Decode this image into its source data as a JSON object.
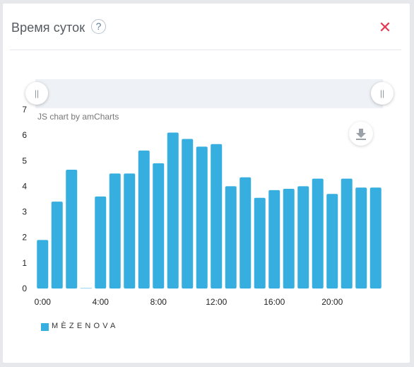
{
  "header": {
    "title": "Время суток",
    "help_label": "?",
    "close_label": "✕"
  },
  "colors": {
    "series": "#36aee0",
    "close": "#e8354f"
  },
  "credit": "JS chart by amCharts",
  "chart_data": {
    "type": "bar",
    "x": [
      0,
      1,
      2,
      3,
      4,
      5,
      6,
      7,
      8,
      9,
      10,
      11,
      12,
      13,
      14,
      15,
      16,
      17,
      18,
      19,
      20,
      21,
      22,
      23
    ],
    "xticks": [
      "0:00",
      "4:00",
      "8:00",
      "12:00",
      "16:00",
      "20:00"
    ],
    "ylim": [
      0,
      7
    ],
    "yticks": [
      "0",
      "1",
      "2",
      "3",
      "4",
      "5",
      "6",
      "7"
    ],
    "grid": false,
    "legend": "bottom-left",
    "series": [
      {
        "name": "MÈZENOVA",
        "values": [
          1.9,
          3.4,
          4.65,
          0,
          3.6,
          4.5,
          4.5,
          5.4,
          4.9,
          6.1,
          5.85,
          5.55,
          5.65,
          4.0,
          4.35,
          3.55,
          3.85,
          3.9,
          4.0,
          4.3,
          3.7,
          4.3,
          3.95,
          3.95
        ]
      }
    ]
  }
}
